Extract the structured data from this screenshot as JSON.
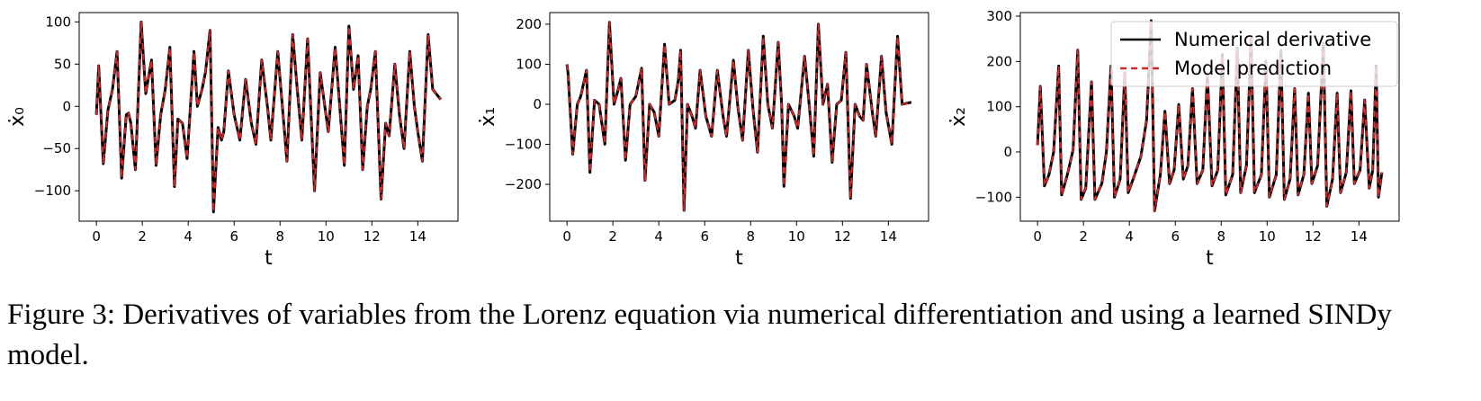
{
  "chart_data": [
    {
      "type": "line",
      "xlabel": "t",
      "ylabel": "ẋ₀",
      "xlim": [
        -0.75,
        15.75
      ],
      "xticks": [
        0,
        2,
        4,
        6,
        8,
        10,
        12,
        14
      ],
      "ylim": [
        -136,
        111
      ],
      "yticks": [
        {
          "value": -100,
          "label": "−100"
        },
        {
          "value": -50,
          "label": "−50"
        },
        0,
        50,
        100
      ],
      "x": [
        0,
        0.1,
        0.3,
        0.5,
        0.7,
        0.9,
        1.1,
        1.3,
        1.4,
        1.5,
        1.7,
        1.95,
        2.15,
        2.4,
        2.6,
        2.8,
        3.0,
        3.2,
        3.4,
        3.55,
        3.75,
        3.95,
        4.25,
        4.4,
        4.6,
        4.75,
        4.95,
        5.1,
        5.3,
        5.45,
        5.55,
        5.75,
        6.0,
        6.25,
        6.5,
        6.75,
        6.95,
        7.2,
        7.45,
        7.6,
        7.9,
        8.1,
        8.3,
        8.55,
        8.75,
        8.95,
        9.2,
        9.35,
        9.5,
        9.75,
        9.95,
        10.1,
        10.4,
        10.6,
        10.8,
        11.0,
        11.2,
        11.4,
        11.6,
        11.8,
        11.95,
        12.15,
        12.4,
        12.6,
        12.75,
        13.0,
        13.2,
        13.4,
        13.65,
        13.85,
        14.0,
        14.2,
        14.45,
        14.65,
        15.0
      ],
      "series": [
        {
          "color": "#000000",
          "dash": "none",
          "values": [
            -10,
            48,
            -68,
            -5,
            20,
            65,
            -85,
            -10,
            -8,
            -20,
            -75,
            100,
            15,
            55,
            -70,
            -10,
            20,
            70,
            -95,
            -15,
            -20,
            -62,
            65,
            0,
            20,
            40,
            90,
            -125,
            -25,
            -40,
            -30,
            42,
            -10,
            -40,
            32,
            -20,
            -45,
            55,
            0,
            -40,
            65,
            0,
            -65,
            85,
            20,
            -40,
            80,
            -10,
            -100,
            40,
            0,
            -30,
            70,
            0,
            -70,
            95,
            20,
            60,
            -75,
            0,
            20,
            65,
            -110,
            -20,
            -35,
            50,
            -10,
            -50,
            65,
            0,
            -30,
            -65,
            85,
            20,
            8
          ]
        },
        {
          "color": "#d62728",
          "dash": "7 5",
          "values": [
            -10,
            48,
            -68,
            -5,
            20,
            65,
            -85,
            -10,
            -8,
            -20,
            -75,
            100,
            15,
            55,
            -70,
            -10,
            20,
            70,
            -95,
            -15,
            -20,
            -62,
            65,
            0,
            20,
            40,
            90,
            -125,
            -25,
            -40,
            -30,
            42,
            -10,
            -40,
            32,
            -20,
            -45,
            55,
            0,
            -40,
            65,
            0,
            -65,
            85,
            20,
            -40,
            80,
            -10,
            -100,
            40,
            0,
            -30,
            70,
            0,
            -70,
            95,
            20,
            60,
            -75,
            0,
            20,
            65,
            -110,
            -20,
            -35,
            50,
            -10,
            -50,
            65,
            0,
            -30,
            -65,
            85,
            20,
            8
          ]
        }
      ]
    },
    {
      "type": "line",
      "xlabel": "t",
      "ylabel": "ẋ₁",
      "xlim": [
        -0.75,
        15.75
      ],
      "xticks": [
        0,
        2,
        4,
        6,
        8,
        10,
        12,
        14
      ],
      "ylim": [
        -292,
        229
      ],
      "yticks": [
        {
          "value": -200,
          "label": "−200"
        },
        {
          "value": -100,
          "label": "−100"
        },
        0,
        100,
        200
      ],
      "x": [
        0,
        0.05,
        0.25,
        0.45,
        0.6,
        0.85,
        1.0,
        1.2,
        1.4,
        1.65,
        1.85,
        2.05,
        2.2,
        2.35,
        2.55,
        2.75,
        3.0,
        3.25,
        3.4,
        3.6,
        3.8,
        4.0,
        4.25,
        4.45,
        4.7,
        4.85,
        4.95,
        5.1,
        5.25,
        5.45,
        5.6,
        5.8,
        6.05,
        6.3,
        6.55,
        6.8,
        6.95,
        7.25,
        7.45,
        7.65,
        7.9,
        8.1,
        8.3,
        8.55,
        8.75,
        8.95,
        9.2,
        9.35,
        9.45,
        9.65,
        9.9,
        10.05,
        10.35,
        10.55,
        10.75,
        10.95,
        11.15,
        11.35,
        11.55,
        11.75,
        11.95,
        12.15,
        12.35,
        12.55,
        12.75,
        12.9,
        13.05,
        13.3,
        13.45,
        13.7,
        13.9,
        14.15,
        14.4,
        14.6,
        15.0
      ],
      "series": [
        {
          "color": "#000000",
          "dash": "none",
          "values": [
            100,
            75,
            -125,
            0,
            20,
            85,
            -170,
            10,
            0,
            -100,
            205,
            0,
            30,
            65,
            -140,
            0,
            20,
            90,
            -190,
            0,
            -20,
            -80,
            150,
            0,
            10,
            60,
            135,
            -265,
            0,
            -30,
            -60,
            85,
            -30,
            -80,
            85,
            -30,
            -80,
            110,
            -10,
            -90,
            135,
            -10,
            -120,
            170,
            0,
            -60,
            155,
            0,
            -205,
            0,
            -30,
            -60,
            120,
            0,
            -130,
            200,
            0,
            50,
            -145,
            0,
            10,
            130,
            -235,
            0,
            -30,
            -40,
            100,
            -20,
            -80,
            120,
            -20,
            -100,
            170,
            0,
            5
          ]
        },
        {
          "color": "#d62728",
          "dash": "7 5",
          "values": [
            100,
            75,
            -125,
            0,
            20,
            85,
            -170,
            10,
            0,
            -100,
            205,
            0,
            30,
            65,
            -140,
            0,
            20,
            90,
            -190,
            0,
            -20,
            -80,
            150,
            0,
            10,
            60,
            135,
            -265,
            0,
            -30,
            -60,
            85,
            -30,
            -80,
            85,
            -30,
            -80,
            110,
            -10,
            -90,
            135,
            -10,
            -120,
            170,
            0,
            -60,
            155,
            0,
            -205,
            0,
            -30,
            -60,
            120,
            0,
            -130,
            200,
            0,
            50,
            -145,
            0,
            10,
            130,
            -235,
            0,
            -30,
            -40,
            100,
            -20,
            -80,
            120,
            -20,
            -100,
            170,
            0,
            5
          ]
        }
      ]
    },
    {
      "type": "line",
      "xlabel": "t",
      "ylabel": "ẋ₂",
      "legend": "upper right",
      "xlim": [
        -0.75,
        15.75
      ],
      "xticks": [
        0,
        2,
        4,
        6,
        8,
        10,
        12,
        14
      ],
      "ylim": [
        -153,
        308
      ],
      "yticks": [
        {
          "value": -100,
          "label": "−100"
        },
        0,
        100,
        200,
        300
      ],
      "x": [
        0,
        0.12,
        0.3,
        0.5,
        0.7,
        0.92,
        1.05,
        1.3,
        1.55,
        1.75,
        1.9,
        2.1,
        2.35,
        2.5,
        2.8,
        3.0,
        3.2,
        3.35,
        3.6,
        3.8,
        3.95,
        4.2,
        4.5,
        4.75,
        4.95,
        5.1,
        5.35,
        5.55,
        5.75,
        5.95,
        6.15,
        6.35,
        6.55,
        6.75,
        6.95,
        7.2,
        7.4,
        7.6,
        7.85,
        8.05,
        8.2,
        8.5,
        8.7,
        8.85,
        9.1,
        9.3,
        9.45,
        9.75,
        9.95,
        10.1,
        10.4,
        10.6,
        10.75,
        11.0,
        11.2,
        11.35,
        11.6,
        11.8,
        11.95,
        12.2,
        12.45,
        12.6,
        12.85,
        13.05,
        13.2,
        13.45,
        13.65,
        13.8,
        14.05,
        14.25,
        14.45,
        14.6,
        14.75,
        14.85,
        15.0
      ],
      "series": [
        {
          "name": "Numerical derivative",
          "color": "#000000",
          "dash": "none",
          "values": [
            15,
            145,
            -75,
            -50,
            0,
            190,
            -95,
            -50,
            5,
            225,
            -105,
            -80,
            155,
            -105,
            -70,
            0,
            190,
            -100,
            -60,
            175,
            -90,
            -55,
            -10,
            70,
            290,
            -130,
            -50,
            90,
            -70,
            -40,
            105,
            -60,
            -30,
            140,
            -70,
            -40,
            170,
            -75,
            -40,
            215,
            -95,
            -50,
            230,
            -90,
            -30,
            250,
            -90,
            -50,
            200,
            -100,
            -50,
            225,
            -105,
            -60,
            140,
            -95,
            -50,
            130,
            -70,
            -30,
            240,
            -120,
            -60,
            130,
            -90,
            -45,
            135,
            -70,
            -40,
            115,
            -80,
            -40,
            190,
            -100,
            -45
          ]
        },
        {
          "name": "Model prediction",
          "color": "#d62728",
          "dash": "7 5",
          "values": [
            15,
            145,
            -75,
            -50,
            0,
            190,
            -95,
            -50,
            5,
            225,
            -105,
            -80,
            155,
            -105,
            -70,
            0,
            190,
            -100,
            -60,
            175,
            -90,
            -55,
            -10,
            70,
            290,
            -130,
            -50,
            90,
            -70,
            -40,
            105,
            -60,
            -30,
            140,
            -70,
            -40,
            170,
            -75,
            -40,
            215,
            -95,
            -50,
            230,
            -90,
            -30,
            250,
            -90,
            -50,
            200,
            -100,
            -50,
            225,
            -105,
            -60,
            140,
            -95,
            -50,
            130,
            -70,
            -30,
            240,
            -120,
            -60,
            130,
            -90,
            -45,
            135,
            -70,
            -40,
            115,
            -80,
            -40,
            190,
            -100,
            -45
          ]
        }
      ]
    }
  ],
  "caption": "Figure 3: Derivatives of variables from the Lorenz equation via numerical differentiation and using a learned SINDy model."
}
